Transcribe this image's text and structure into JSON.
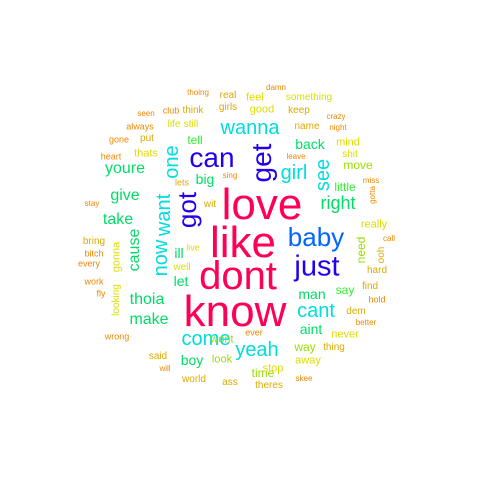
{
  "cloud": {
    "words": [
      {
        "text": "love",
        "color": "#ff0055",
        "size_rank": 1
      },
      {
        "text": "know",
        "color": "#ff0055",
        "size_rank": 1
      },
      {
        "text": "like",
        "color": "#ff0055",
        "size_rank": 1
      },
      {
        "text": "dont",
        "color": "#ff0055",
        "size_rank": 1
      },
      {
        "text": "just",
        "color": "#2200ee",
        "size_rank": 2
      },
      {
        "text": "can",
        "color": "#2200ee",
        "size_rank": 2
      },
      {
        "text": "get",
        "color": "#2200ee",
        "size_rank": 2
      },
      {
        "text": "baby",
        "color": "#0066ff",
        "size_rank": 2
      },
      {
        "text": "got",
        "color": "#2200ee",
        "size_rank": 2
      },
      {
        "text": "wanna",
        "color": "#00dddd",
        "size_rank": 3
      },
      {
        "text": "one",
        "color": "#00dddd",
        "size_rank": 3
      },
      {
        "text": "want",
        "color": "#00dddd",
        "size_rank": 3
      },
      {
        "text": "now",
        "color": "#00dddd",
        "size_rank": 3
      },
      {
        "text": "come",
        "color": "#00dddd",
        "size_rank": 3
      },
      {
        "text": "yeah",
        "color": "#00dddd",
        "size_rank": 3
      },
      {
        "text": "girl",
        "color": "#00dddd",
        "size_rank": 3
      },
      {
        "text": "see",
        "color": "#00dddd",
        "size_rank": 3
      },
      {
        "text": "cant",
        "color": "#00dddd",
        "size_rank": 3
      },
      {
        "text": "right",
        "color": "#00dd66",
        "size_rank": 4
      },
      {
        "text": "youre",
        "color": "#00dd66",
        "size_rank": 4
      },
      {
        "text": "give",
        "color": "#00dd66",
        "size_rank": 4
      },
      {
        "text": "take",
        "color": "#00dd66",
        "size_rank": 4
      },
      {
        "text": "cause",
        "color": "#00dd66",
        "size_rank": 4
      },
      {
        "text": "thoia",
        "color": "#00dd66",
        "size_rank": 4
      },
      {
        "text": "make",
        "color": "#00dd66",
        "size_rank": 4
      },
      {
        "text": "back",
        "color": "#00dd66",
        "size_rank": 4
      },
      {
        "text": "let",
        "color": "#00dd66",
        "size_rank": 4
      },
      {
        "text": "man",
        "color": "#00dd66",
        "size_rank": 4
      },
      {
        "text": "aint",
        "color": "#00dd66",
        "size_rank": 4
      },
      {
        "text": "boy",
        "color": "#00dd66",
        "size_rank": 4
      },
      {
        "text": "big",
        "color": "#00dd66",
        "size_rank": 4
      },
      {
        "text": "ill",
        "color": "#00dd66",
        "size_rank": 4
      },
      {
        "text": "tell",
        "color": "#33ee33",
        "size_rank": 5
      },
      {
        "text": "say",
        "color": "#33ee33",
        "size_rank": 5
      },
      {
        "text": "need",
        "color": "#99dd00",
        "size_rank": 5
      },
      {
        "text": "little",
        "color": "#33ee33",
        "size_rank": 5
      },
      {
        "text": "move",
        "color": "#99dd00",
        "size_rank": 5
      },
      {
        "text": "way",
        "color": "#99dd00",
        "size_rank": 5
      },
      {
        "text": "time",
        "color": "#99dd00",
        "size_rank": 5
      },
      {
        "text": "look",
        "color": "#99dd00",
        "size_rank": 5
      },
      {
        "text": "wont",
        "color": "#99dd00",
        "size_rank": 5
      },
      {
        "text": "stop",
        "color": "#dddd00",
        "size_rank": 5
      },
      {
        "text": "away",
        "color": "#dddd00",
        "size_rank": 5
      },
      {
        "text": "thats",
        "color": "#dddd00",
        "size_rank": 5
      },
      {
        "text": "gonna",
        "color": "#dddd00",
        "size_rank": 5
      },
      {
        "text": "really",
        "color": "#dddd00",
        "size_rank": 5
      },
      {
        "text": "never",
        "color": "#dddd00",
        "size_rank": 5
      },
      {
        "text": "mind",
        "color": "#dddd00",
        "size_rank": 5
      },
      {
        "text": "good",
        "color": "#dddd00",
        "size_rank": 5
      },
      {
        "text": "feel",
        "color": "#dddd00",
        "size_rank": 5
      },
      {
        "text": "something",
        "color": "#dddd00",
        "size_rank": 6
      },
      {
        "text": "shit",
        "color": "#dddd00",
        "size_rank": 6
      },
      {
        "text": "looking",
        "color": "#dddd00",
        "size_rank": 6
      },
      {
        "text": "find",
        "color": "#ddaa00",
        "size_rank": 6
      },
      {
        "text": "well",
        "color": "#dddd00",
        "size_rank": 6
      },
      {
        "text": "live",
        "color": "#dddd00",
        "size_rank": 6
      },
      {
        "text": "lets",
        "color": "#ddaa00",
        "size_rank": 6
      },
      {
        "text": "still",
        "color": "#dddd00",
        "size_rank": 6
      },
      {
        "text": "life",
        "color": "#dddd00",
        "size_rank": 6
      },
      {
        "text": "think",
        "color": "#ddaa00",
        "size_rank": 6
      },
      {
        "text": "real",
        "color": "#ddaa00",
        "size_rank": 6
      },
      {
        "text": "girls",
        "color": "#ddaa00",
        "size_rank": 6
      },
      {
        "text": "keep",
        "color": "#ddaa00",
        "size_rank": 6
      },
      {
        "text": "name",
        "color": "#ddaa00",
        "size_rank": 6
      },
      {
        "text": "thing",
        "color": "#ddaa00",
        "size_rank": 6
      },
      {
        "text": "world",
        "color": "#ddaa00",
        "size_rank": 6
      },
      {
        "text": "theres",
        "color": "#ddaa00",
        "size_rank": 6
      },
      {
        "text": "ass",
        "color": "#ddaa00",
        "size_rank": 6
      },
      {
        "text": "said",
        "color": "#ddaa00",
        "size_rank": 6
      },
      {
        "text": "put",
        "color": "#ddaa00",
        "size_rank": 6
      },
      {
        "text": "dem",
        "color": "#ddaa00",
        "size_rank": 6
      },
      {
        "text": "hard",
        "color": "#ddaa00",
        "size_rank": 6
      },
      {
        "text": "ooh",
        "color": "#ddaa00",
        "size_rank": 6
      },
      {
        "text": "wit",
        "color": "#ddaa00",
        "size_rank": 6
      },
      {
        "text": "bring",
        "color": "#ddaa00",
        "size_rank": 6
      },
      {
        "text": "work",
        "color": "#ee8800",
        "size_rank": 7
      },
      {
        "text": "fly",
        "color": "#ee8800",
        "size_rank": 7
      },
      {
        "text": "every",
        "color": "#ee8800",
        "size_rank": 7
      },
      {
        "text": "bitch",
        "color": "#ee8800",
        "size_rank": 7
      },
      {
        "text": "stay",
        "color": "#ee8800",
        "size_rank": 7
      },
      {
        "text": "heart",
        "color": "#ee8800",
        "size_rank": 7
      },
      {
        "text": "gone",
        "color": "#ee8800",
        "size_rank": 7
      },
      {
        "text": "always",
        "color": "#ee8800",
        "size_rank": 7
      },
      {
        "text": "seen",
        "color": "#ee8800",
        "size_rank": 7
      },
      {
        "text": "club",
        "color": "#ee8800",
        "size_rank": 7
      },
      {
        "text": "thoing",
        "color": "#ee8800",
        "size_rank": 7
      },
      {
        "text": "damn",
        "color": "#ee8800",
        "size_rank": 7
      },
      {
        "text": "crazy",
        "color": "#ee8800",
        "size_rank": 7
      },
      {
        "text": "night",
        "color": "#ee8800",
        "size_rank": 7
      },
      {
        "text": "leave",
        "color": "#ee8800",
        "size_rank": 7
      },
      {
        "text": "sing",
        "color": "#ee8800",
        "size_rank": 7
      },
      {
        "text": "miss",
        "color": "#ee8800",
        "size_rank": 7
      },
      {
        "text": "gotta",
        "color": "#ee8800",
        "size_rank": 7
      },
      {
        "text": "call",
        "color": "#ee8800",
        "size_rank": 7
      },
      {
        "text": "hold",
        "color": "#ee8800",
        "size_rank": 7
      },
      {
        "text": "better",
        "color": "#ee8800",
        "size_rank": 7
      },
      {
        "text": "skee",
        "color": "#ee8800",
        "size_rank": 7
      },
      {
        "text": "ever",
        "color": "#ee8800",
        "size_rank": 7
      },
      {
        "text": "will",
        "color": "#ee8800",
        "size_rank": 7
      },
      {
        "text": "wrong",
        "color": "#ee8800",
        "size_rank": 7
      }
    ]
  }
}
